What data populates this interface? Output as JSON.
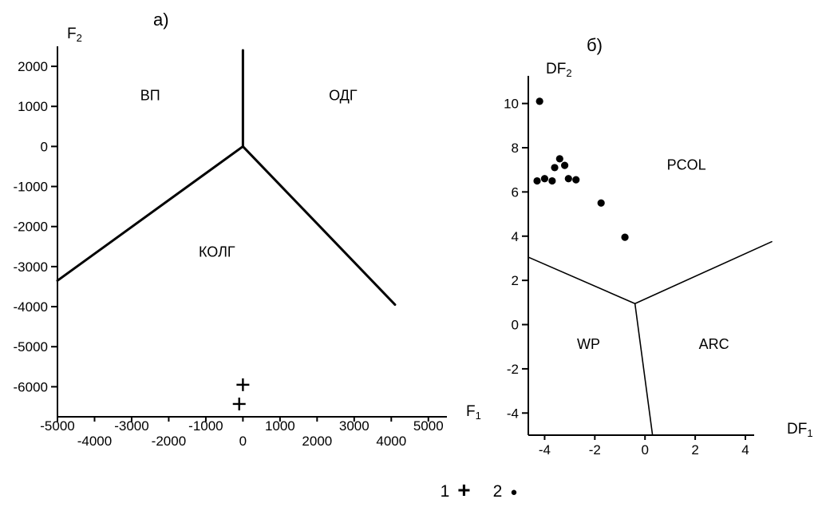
{
  "figure": {
    "background": "#ffffff",
    "ink": "#000000"
  },
  "legend": {
    "items": [
      {
        "label": "1",
        "marker": "plus"
      },
      {
        "label": "2",
        "marker": "dot"
      }
    ]
  },
  "chart_data": [
    {
      "type": "scatter",
      "panel_label": "а)",
      "xlabel": {
        "base": "F",
        "sub": "1"
      },
      "ylabel": {
        "base": "F",
        "sub": "2"
      },
      "xlim": [
        -5000,
        5500
      ],
      "ylim": [
        -6750,
        2500
      ],
      "xticks": [
        -5000,
        -4000,
        -3000,
        -2000,
        -1000,
        0,
        1000,
        2000,
        3000,
        4000,
        5000
      ],
      "yticks": [
        2000,
        1000,
        0,
        -1000,
        -2000,
        -3000,
        -4000,
        -5000,
        -6000
      ],
      "xtick_stagger": true,
      "grid": false,
      "regions": [
        {
          "label": "ВП",
          "x": -2500,
          "y": 1150
        },
        {
          "label": "ОДГ",
          "x": 2700,
          "y": 1150
        },
        {
          "label": "КОЛГ",
          "x": -700,
          "y": -2750
        }
      ],
      "boundaries": [
        {
          "name": "upper-divider",
          "points": [
            [
              0,
              2400
            ],
            [
              0,
              0
            ]
          ]
        },
        {
          "name": "left-divider",
          "points": [
            [
              0,
              0
            ],
            [
              -5000,
              -3350
            ]
          ]
        },
        {
          "name": "right-divider",
          "points": [
            [
              0,
              0
            ],
            [
              4100,
              -3950
            ]
          ]
        }
      ],
      "series": [
        {
          "name": "1",
          "marker": "plus",
          "points": [
            [
              0,
              -5950
            ],
            [
              -100,
              -6430
            ]
          ]
        }
      ]
    },
    {
      "type": "scatter",
      "panel_label": "б)",
      "xlabel": {
        "base": "DF",
        "sub": "1"
      },
      "ylabel": {
        "base": "DF",
        "sub": "2"
      },
      "xlim": [
        -4.65,
        4.35
      ],
      "ylim": [
        -5.0,
        11.25
      ],
      "xticks": [
        -4,
        -2,
        0,
        2,
        4
      ],
      "yticks": [
        10,
        8,
        6,
        4,
        2,
        0,
        -2,
        -4
      ],
      "xtick_stagger": false,
      "grid": false,
      "regions": [
        {
          "label": "PCOL",
          "x": 1.65,
          "y": 7.0
        },
        {
          "label": "WP",
          "x": -2.25,
          "y": -1.1
        },
        {
          "label": "ARC",
          "x": 2.75,
          "y": -1.1
        }
      ],
      "boundaries": [
        {
          "name": "left-divider",
          "points": [
            [
              -4.65,
              3.05
            ],
            [
              -0.4,
              0.95
            ]
          ]
        },
        {
          "name": "right-divider",
          "points": [
            [
              -0.4,
              0.95
            ],
            [
              5.05,
              3.75
            ]
          ]
        },
        {
          "name": "lower-divider",
          "points": [
            [
              -0.4,
              0.95
            ],
            [
              0.3,
              -5.0
            ]
          ]
        }
      ],
      "series": [
        {
          "name": "2",
          "marker": "dot",
          "points": [
            [
              -4.2,
              10.1
            ],
            [
              -3.4,
              7.5
            ],
            [
              -3.6,
              7.1
            ],
            [
              -3.2,
              7.2
            ],
            [
              -4.0,
              6.6
            ],
            [
              -4.3,
              6.5
            ],
            [
              -3.7,
              6.5
            ],
            [
              -3.05,
              6.6
            ],
            [
              -2.75,
              6.55
            ],
            [
              -1.75,
              5.5
            ],
            [
              -0.8,
              3.95
            ]
          ]
        }
      ]
    }
  ]
}
